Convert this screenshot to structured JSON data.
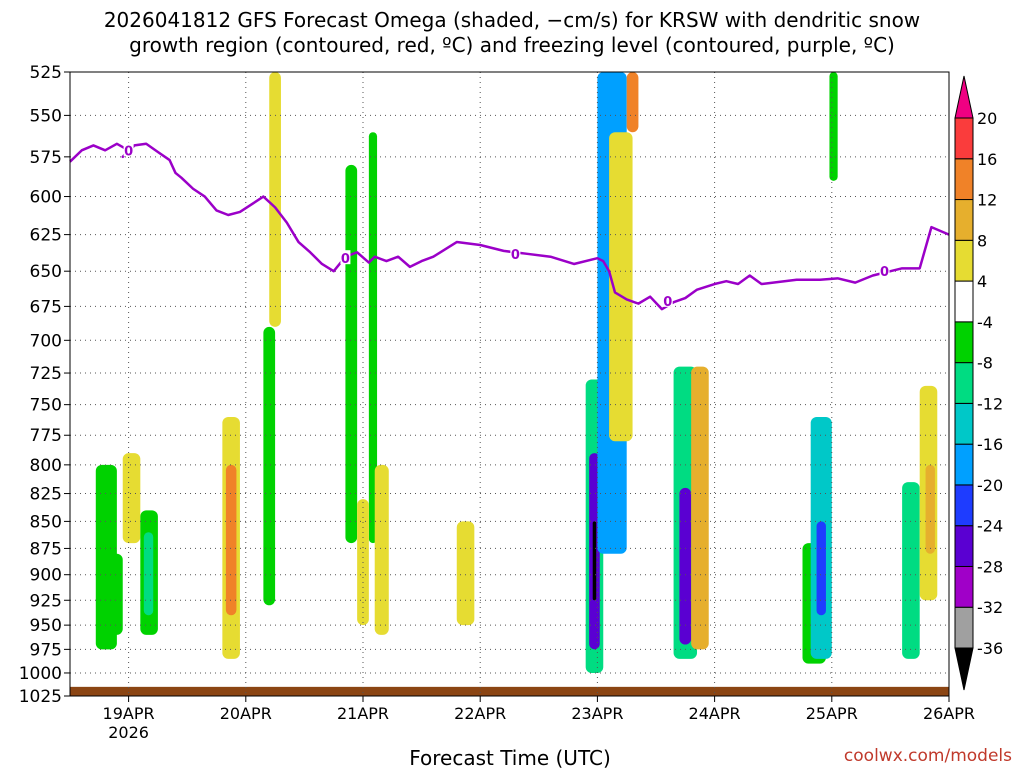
{
  "chart_data": {
    "type": "heatmap",
    "title_line1": "2026041812 GFS Forecast Omega (shaded, −cm/s) for KRSW with dendritic snow",
    "title_line2": "growth region (contoured, red, ºC) and freezing level (contoured, purple, ºC)",
    "xlabel": "Forecast Time (UTC)",
    "ylabel": "",
    "watermark": "coolwx.com/models",
    "y_scale": "log pressure (hPa), inverted",
    "ylim": [
      1025,
      525
    ],
    "y_ticks": [
      "525",
      "550",
      "575",
      "600",
      "625",
      "650",
      "675",
      "700",
      "725",
      "750",
      "775",
      "800",
      "825",
      "850",
      "875",
      "900",
      "925",
      "950",
      "975",
      "1000",
      "1025"
    ],
    "xlim": [
      -0.5,
      7.0
    ],
    "x_units": "days from 19APR 00Z",
    "x_ticks": [
      {
        "x": 0,
        "label": "19APR",
        "sub": "2026"
      },
      {
        "x": 1,
        "label": "20APR",
        "sub": ""
      },
      {
        "x": 2,
        "label": "21APR",
        "sub": ""
      },
      {
        "x": 3,
        "label": "22APR",
        "sub": ""
      },
      {
        "x": 4,
        "label": "23APR",
        "sub": ""
      },
      {
        "x": 5,
        "label": "24APR",
        "sub": ""
      },
      {
        "x": 6,
        "label": "25APR",
        "sub": ""
      },
      {
        "x": 7,
        "label": "26APR",
        "sub": ""
      }
    ],
    "grid": true,
    "colorbar": {
      "position": "right",
      "levels": [
        "-36",
        "-32",
        "-28",
        "-24",
        "-20",
        "-16",
        "-12",
        "-8",
        "-4",
        "4",
        "8",
        "12",
        "16",
        "20"
      ],
      "colors": [
        "#000000",
        "#a0a0a0",
        "#a000c8",
        "#5a00d2",
        "#1e3cff",
        "#00a0ff",
        "#00c8c8",
        "#00dc82",
        "#00d200",
        "#ffffff",
        "#e6dc32",
        "#e6af2d",
        "#f08228",
        "#fa3c3c",
        "#f00082"
      ]
    },
    "freezing_level": {
      "color": "#9b00c8",
      "label": "0",
      "points": [
        [
          -0.5,
          578
        ],
        [
          -0.4,
          571
        ],
        [
          -0.3,
          568
        ],
        [
          -0.2,
          571
        ],
        [
          -0.1,
          567
        ],
        [
          0.0,
          571
        ],
        [
          -0.05,
          575
        ],
        [
          0.05,
          568
        ],
        [
          0.15,
          567
        ],
        [
          0.25,
          572
        ],
        [
          0.35,
          577
        ],
        [
          0.4,
          585
        ],
        [
          0.45,
          588
        ],
        [
          0.55,
          595
        ],
        [
          0.65,
          600
        ],
        [
          0.75,
          609
        ],
        [
          0.85,
          612
        ],
        [
          0.95,
          610
        ],
        [
          1.05,
          605
        ],
        [
          1.15,
          600
        ],
        [
          1.25,
          607
        ],
        [
          1.35,
          617
        ],
        [
          1.45,
          630
        ],
        [
          1.55,
          637
        ],
        [
          1.65,
          645
        ],
        [
          1.75,
          650
        ],
        [
          1.85,
          640
        ],
        [
          1.95,
          637
        ],
        [
          2.05,
          644
        ],
        [
          2.1,
          640
        ],
        [
          2.2,
          643
        ],
        [
          2.3,
          640
        ],
        [
          2.4,
          647
        ],
        [
          2.5,
          643
        ],
        [
          2.6,
          640
        ],
        [
          2.8,
          630
        ],
        [
          3.0,
          632
        ],
        [
          3.2,
          636
        ],
        [
          3.4,
          638
        ],
        [
          3.6,
          640
        ],
        [
          3.8,
          645
        ],
        [
          4.0,
          641
        ],
        [
          4.05,
          643
        ],
        [
          4.1,
          650
        ],
        [
          4.15,
          665
        ],
        [
          4.25,
          670
        ],
        [
          4.35,
          673
        ],
        [
          4.45,
          668
        ],
        [
          4.55,
          677
        ],
        [
          4.65,
          672
        ],
        [
          4.75,
          669
        ],
        [
          4.85,
          663
        ],
        [
          5.0,
          659
        ],
        [
          5.1,
          657
        ],
        [
          5.2,
          659
        ],
        [
          5.3,
          653
        ],
        [
          5.4,
          659
        ],
        [
          5.5,
          658
        ],
        [
          5.7,
          656
        ],
        [
          5.9,
          656
        ],
        [
          6.05,
          655
        ],
        [
          6.2,
          658
        ],
        [
          6.35,
          653
        ],
        [
          6.5,
          650
        ],
        [
          6.6,
          648
        ],
        [
          6.75,
          648
        ],
        [
          6.85,
          620
        ],
        [
          7.0,
          625
        ]
      ],
      "labels_at": [
        [
          0.0,
          571
        ],
        [
          1.85,
          641
        ],
        [
          3.3,
          638
        ],
        [
          4.6,
          671
        ],
        [
          6.45,
          650
        ]
      ]
    },
    "surface_terrain": {
      "color": "#8b4513",
      "pressure": 1015
    },
    "omega_features": [
      {
        "x0": -0.28,
        "x1": -0.1,
        "p0": 800,
        "p1": 975,
        "color": "#00d200"
      },
      {
        "x0": -0.18,
        "x1": -0.05,
        "p0": 880,
        "p1": 960,
        "color": "#00d200"
      },
      {
        "x0": -0.05,
        "x1": 0.1,
        "p0": 790,
        "p1": 870,
        "color": "#e6dc32"
      },
      {
        "x0": 0.1,
        "x1": 0.25,
        "p0": 840,
        "p1": 960,
        "color": "#00d200"
      },
      {
        "x0": 0.13,
        "x1": 0.21,
        "p0": 860,
        "p1": 940,
        "color": "#00dc82"
      },
      {
        "x0": 0.8,
        "x1": 0.95,
        "p0": 760,
        "p1": 985,
        "color": "#e6dc32"
      },
      {
        "x0": 0.83,
        "x1": 0.92,
        "p0": 800,
        "p1": 940,
        "color": "#f08228"
      },
      {
        "x0": 1.15,
        "x1": 1.25,
        "p0": 690,
        "p1": 930,
        "color": "#00d200"
      },
      {
        "x0": 1.2,
        "x1": 1.3,
        "p0": 525,
        "p1": 690,
        "color": "#e6dc32"
      },
      {
        "x0": 1.85,
        "x1": 1.95,
        "p0": 580,
        "p1": 870,
        "color": "#00d200"
      },
      {
        "x0": 2.05,
        "x1": 2.12,
        "p0": 560,
        "p1": 870,
        "color": "#00d200"
      },
      {
        "x0": 1.95,
        "x1": 2.05,
        "p0": 830,
        "p1": 950,
        "color": "#e6dc32"
      },
      {
        "x0": 2.1,
        "x1": 2.22,
        "p0": 800,
        "p1": 960,
        "color": "#e6dc32"
      },
      {
        "x0": 2.8,
        "x1": 2.95,
        "p0": 850,
        "p1": 950,
        "color": "#e6dc32"
      },
      {
        "x0": 3.9,
        "x1": 4.05,
        "p0": 730,
        "p1": 1000,
        "color": "#00dc82"
      },
      {
        "x0": 3.93,
        "x1": 4.02,
        "p0": 790,
        "p1": 975,
        "color": "#5a00d2"
      },
      {
        "x0": 3.96,
        "x1": 3.99,
        "p0": 850,
        "p1": 925,
        "color": "#000000"
      },
      {
        "x0": 4.0,
        "x1": 4.25,
        "p0": 525,
        "p1": 880,
        "color": "#00a0ff"
      },
      {
        "x0": 4.1,
        "x1": 4.3,
        "p0": 560,
        "p1": 780,
        "color": "#e6dc32"
      },
      {
        "x0": 4.25,
        "x1": 4.35,
        "p0": 525,
        "p1": 560,
        "color": "#f08228"
      },
      {
        "x0": 4.65,
        "x1": 4.85,
        "p0": 720,
        "p1": 985,
        "color": "#00dc82"
      },
      {
        "x0": 4.7,
        "x1": 4.8,
        "p0": 820,
        "p1": 970,
        "color": "#5a00d2"
      },
      {
        "x0": 4.8,
        "x1": 4.95,
        "p0": 720,
        "p1": 975,
        "color": "#e6af2d"
      },
      {
        "x0": 5.75,
        "x1": 5.95,
        "p0": 870,
        "p1": 990,
        "color": "#00d200"
      },
      {
        "x0": 5.82,
        "x1": 6.0,
        "p0": 760,
        "p1": 985,
        "color": "#00c8c8"
      },
      {
        "x0": 5.87,
        "x1": 5.95,
        "p0": 850,
        "p1": 940,
        "color": "#1e3cff"
      },
      {
        "x0": 5.98,
        "x1": 6.05,
        "p0": 525,
        "p1": 590,
        "color": "#00d200"
      },
      {
        "x0": 6.6,
        "x1": 6.75,
        "p0": 815,
        "p1": 985,
        "color": "#00dc82"
      },
      {
        "x0": 6.75,
        "x1": 6.9,
        "p0": 735,
        "p1": 925,
        "color": "#e6dc32"
      },
      {
        "x0": 6.8,
        "x1": 6.88,
        "p0": 800,
        "p1": 880,
        "color": "#e6af2d"
      }
    ]
  }
}
